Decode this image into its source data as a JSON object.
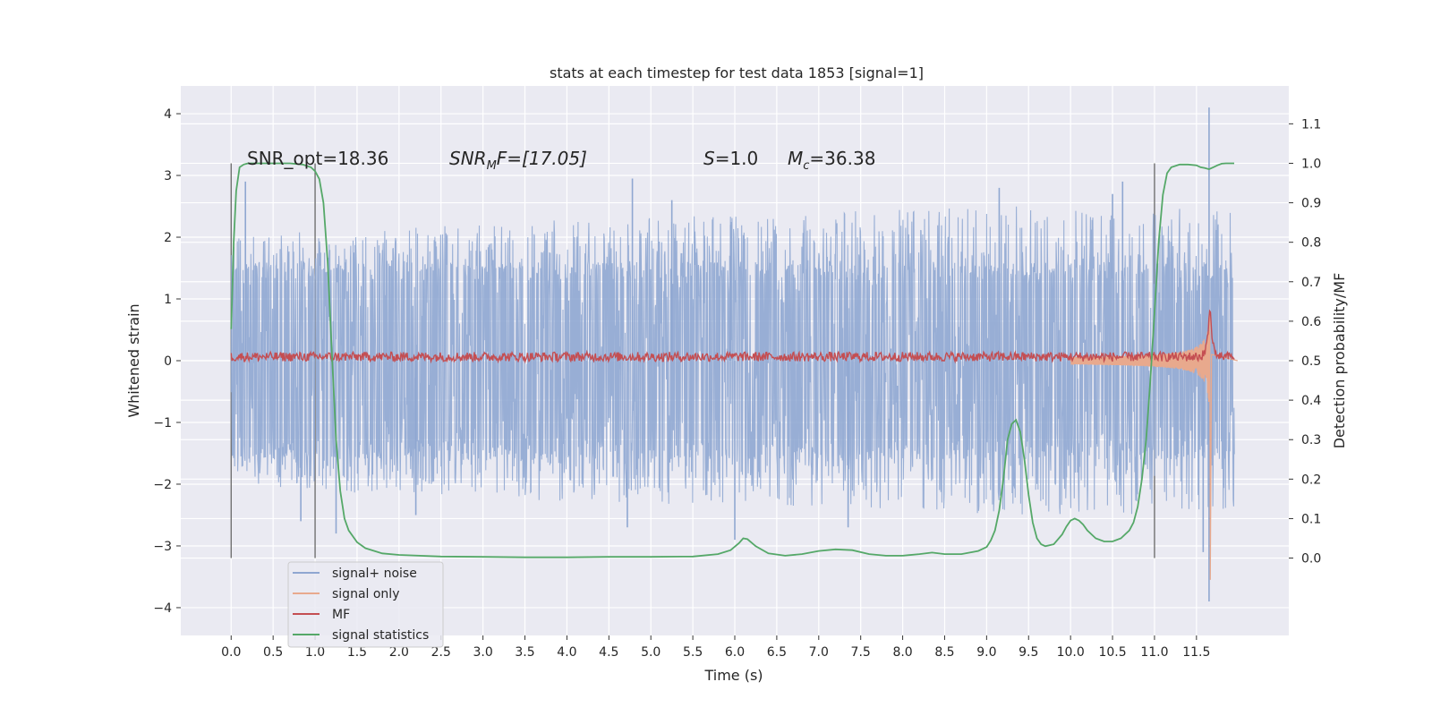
{
  "chart_data": {
    "type": "line",
    "title": "stats at each timestep for test data 1853 [signal=1]",
    "xlabel": "Time (s)",
    "ylabel": "Whitened strain",
    "y2label": "Detection probability/MF",
    "xlim": [
      -0.6,
      12.6
    ],
    "ylim": [
      -4.45,
      4.45
    ],
    "y2lim": [
      -0.196,
      1.196
    ],
    "grid": true,
    "legend_position": "lower-left",
    "x_ticks": [
      0.0,
      0.5,
      1.0,
      1.5,
      2.0,
      2.5,
      3.0,
      3.5,
      4.0,
      4.5,
      5.0,
      5.5,
      6.0,
      6.5,
      7.0,
      7.5,
      8.0,
      8.5,
      9.0,
      9.5,
      10.0,
      10.5,
      11.0,
      11.5
    ],
    "x_tick_labels": [
      "0.0",
      "0.5",
      "1.0",
      "1.5",
      "2.0",
      "2.5",
      "3.0",
      "3.5",
      "4.0",
      "4.5",
      "5.0",
      "5.5",
      "6.0",
      "6.5",
      "7.0",
      "7.5",
      "8.0",
      "8.5",
      "9.0",
      "9.5",
      "10.0",
      "10.5",
      "11.0",
      "11.5"
    ],
    "y_ticks": [
      -4,
      -3,
      -2,
      -1,
      0,
      1,
      2,
      3,
      4
    ],
    "y_tick_labels": [
      "−4",
      "−3",
      "−2",
      "−1",
      "0",
      "1",
      "2",
      "3",
      "4"
    ],
    "y2_ticks": [
      0.0,
      0.1,
      0.2,
      0.3,
      0.4,
      0.5,
      0.6,
      0.7,
      0.8,
      0.9,
      1.0,
      1.1
    ],
    "y2_tick_labels": [
      "0.0",
      "0.1",
      "0.2",
      "0.3",
      "0.4",
      "0.5",
      "0.6",
      "0.7",
      "0.8",
      "0.9",
      "1.0",
      "1.1"
    ],
    "annotations": {
      "snr_opt": "SNR_opt=18.36",
      "snr_mf_name": "SNR",
      "snr_mf_sub": "M",
      "snr_mf_value": "F=[17.05]",
      "s_name": "S",
      "s_value": "=1.0",
      "mc_name": "M",
      "mc_sub": "c",
      "mc_value": "=36.38"
    },
    "vertical_markers": [
      0.0,
      1.0,
      11.0
    ],
    "series": [
      {
        "name": "signal+ noise",
        "color": "#8fa7d1",
        "axis": "left",
        "duration": 12.0,
        "baseline_amplitude": 1.3,
        "peak_envelope": [
          [
            0.0,
            2.0
          ],
          [
            2.0,
            2.2
          ],
          [
            4.5,
            2.3
          ],
          [
            7.0,
            2.4
          ],
          [
            9.0,
            2.5
          ],
          [
            11.0,
            2.5
          ],
          [
            11.95,
            2.4
          ]
        ],
        "spikes": [
          [
            0.17,
            2.9
          ],
          [
            4.78,
            2.95
          ],
          [
            5.25,
            2.6
          ],
          [
            5.95,
            2.2
          ],
          [
            9.15,
            2.8
          ],
          [
            10.5,
            2.7
          ],
          [
            10.62,
            2.9
          ],
          [
            11.65,
            4.1
          ],
          [
            11.65,
            -3.9
          ],
          [
            0.83,
            -2.6
          ],
          [
            1.25,
            -2.8
          ],
          [
            2.2,
            -2.5
          ],
          [
            4.72,
            -2.7
          ],
          [
            6.0,
            -2.9
          ],
          [
            7.35,
            -2.7
          ],
          [
            11.58,
            -3.1
          ]
        ]
      },
      {
        "name": "signal only",
        "color": "#e8a98d",
        "axis": "left",
        "chirp_start": 10.0,
        "chirp_end": 11.66,
        "peak_amplitude": 3.3,
        "min_value": -3.55
      },
      {
        "name": "MF",
        "color": "#c44e52",
        "axis": "right",
        "mean": 0.51,
        "jitter": 0.012,
        "peak": [
          11.66,
          0.68
        ]
      },
      {
        "name": "signal statistics",
        "color": "#55a868",
        "axis": "right",
        "x": [
          0.0,
          0.03,
          0.06,
          0.1,
          0.15,
          0.2,
          0.3,
          0.5,
          0.7,
          0.85,
          0.95,
          1.0,
          1.05,
          1.1,
          1.15,
          1.2,
          1.25,
          1.3,
          1.35,
          1.4,
          1.5,
          1.6,
          1.8,
          2.0,
          2.5,
          3.0,
          3.5,
          4.0,
          4.5,
          5.0,
          5.5,
          5.8,
          5.95,
          6.05,
          6.1,
          6.15,
          6.25,
          6.4,
          6.6,
          6.8,
          7.0,
          7.2,
          7.4,
          7.6,
          7.8,
          8.0,
          8.2,
          8.35,
          8.5,
          8.7,
          8.9,
          9.0,
          9.05,
          9.1,
          9.15,
          9.2,
          9.25,
          9.3,
          9.35,
          9.4,
          9.45,
          9.5,
          9.55,
          9.6,
          9.65,
          9.7,
          9.8,
          9.9,
          9.95,
          10.0,
          10.05,
          10.1,
          10.15,
          10.2,
          10.3,
          10.4,
          10.5,
          10.6,
          10.7,
          10.75,
          10.8,
          10.85,
          10.9,
          10.95,
          11.0,
          11.05,
          11.1,
          11.15,
          11.2,
          11.3,
          11.4,
          11.5,
          11.55,
          11.6,
          11.65,
          11.7,
          11.75,
          11.8,
          11.85,
          11.9,
          11.95
        ],
        "y": [
          0.58,
          0.8,
          0.93,
          0.99,
          0.997,
          1.0,
          1.0,
          1.0,
          1.0,
          0.997,
          0.99,
          0.98,
          0.96,
          0.9,
          0.75,
          0.52,
          0.3,
          0.17,
          0.1,
          0.07,
          0.04,
          0.025,
          0.012,
          0.008,
          0.004,
          0.003,
          0.002,
          0.002,
          0.003,
          0.003,
          0.004,
          0.01,
          0.02,
          0.038,
          0.05,
          0.048,
          0.03,
          0.012,
          0.006,
          0.01,
          0.018,
          0.022,
          0.02,
          0.01,
          0.006,
          0.006,
          0.01,
          0.014,
          0.01,
          0.01,
          0.018,
          0.028,
          0.045,
          0.07,
          0.12,
          0.2,
          0.3,
          0.34,
          0.35,
          0.32,
          0.25,
          0.16,
          0.09,
          0.05,
          0.035,
          0.03,
          0.035,
          0.06,
          0.08,
          0.095,
          0.1,
          0.095,
          0.085,
          0.07,
          0.05,
          0.042,
          0.042,
          0.05,
          0.07,
          0.09,
          0.13,
          0.2,
          0.3,
          0.45,
          0.62,
          0.8,
          0.92,
          0.975,
          0.99,
          0.997,
          0.997,
          0.995,
          0.99,
          0.988,
          0.985,
          0.99,
          0.995,
          0.999,
          1.0,
          1.0,
          1.0
        ]
      }
    ]
  }
}
